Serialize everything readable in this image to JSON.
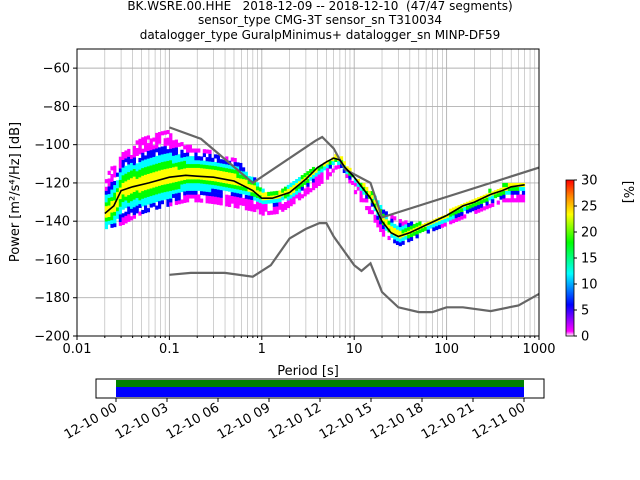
{
  "title": {
    "line1": "BK.WSRE.00.HHE   2018-12-09 -- 2018-12-10  (47/47 segments)",
    "line2": "sensor_type CMG-3T sensor_sn T310034",
    "line3": "datalogger_type GuralpMinimus+ datalogger_sn MINP-DF59"
  },
  "chart_data": [
    {
      "type": "heatmap",
      "xlabel": "Period [s]",
      "ylabel": "Power [m²/s⁴/Hz] [dB]",
      "x_scale": "log",
      "xlim": [
        0.01,
        1000
      ],
      "ylim": [
        -200,
        -50
      ],
      "x_ticks": [
        0.01,
        0.1,
        1,
        10,
        100,
        1000
      ],
      "x_tick_labels": [
        "0.01",
        "0.1",
        "1",
        "10",
        "100",
        "1000"
      ],
      "y_ticks": [
        -200,
        -180,
        -160,
        -140,
        -120,
        -100,
        -80,
        -60
      ],
      "y_tick_labels": [
        "−200",
        "−180",
        "−160",
        "−140",
        "−120",
        "−100",
        "−80",
        "−60"
      ],
      "grid": true,
      "colorbar": {
        "label": "[%]",
        "range": [
          0,
          30
        ],
        "ticks": [
          0,
          5,
          10,
          15,
          20,
          25,
          30
        ],
        "colors": [
          "#ffffff",
          "#ff00ff",
          "#0000ff",
          "#00ffff",
          "#00ff00",
          "#ffff00",
          "#ff8000",
          "#ff0000"
        ]
      },
      "series": [
        {
          "role": "noise_model_high",
          "color": "#666666",
          "x": [
            0.1,
            0.22,
            0.8,
            3.8,
            4.5,
            6,
            8,
            15,
            20,
            1000
          ],
          "y": [
            -91,
            -97,
            -120,
            -98,
            -96,
            -102,
            -113,
            -120,
            -138,
            -112
          ]
        },
        {
          "role": "noise_model_low",
          "color": "#666666",
          "x": [
            0.1,
            0.17,
            0.4,
            0.8,
            1.25,
            2,
            3,
            4.2,
            5,
            6,
            10,
            12,
            15,
            20,
            30,
            50,
            70,
            100,
            150,
            300,
            600,
            1000
          ],
          "y": [
            -168,
            -167,
            -167,
            -169,
            -163,
            -149,
            -144,
            -141,
            -141,
            -148,
            -163,
            -166,
            -162,
            -177,
            -185,
            -187.5,
            -187.5,
            -185,
            -185,
            -187,
            -184,
            -178
          ]
        },
        {
          "role": "mode",
          "color": "#000000",
          "x": [
            0.02,
            0.025,
            0.03,
            0.04,
            0.06,
            0.1,
            0.15,
            0.2,
            0.3,
            0.5,
            0.8,
            1,
            1.3,
            2,
            3,
            4,
            5,
            6,
            7,
            8,
            10,
            15,
            20,
            25,
            30,
            40,
            60,
            100,
            150,
            200,
            300,
            400,
            500,
            700
          ],
          "y": [
            -136,
            -132,
            -124,
            -122,
            -120,
            -117,
            -116,
            -116.5,
            -117,
            -119,
            -124,
            -128,
            -128,
            -125,
            -118,
            -112,
            -109,
            -107,
            -108,
            -112,
            -117,
            -128,
            -140,
            -146,
            -148,
            -146,
            -142,
            -137,
            -132,
            -130,
            -126,
            -124,
            -122,
            -121
          ]
        }
      ],
      "density_band": {
        "x": [
          0.02,
          0.03,
          0.05,
          0.08,
          0.1,
          0.15,
          0.2,
          0.3,
          0.5,
          0.8,
          1,
          1.5,
          2,
          3,
          5,
          6,
          7,
          8,
          10,
          15,
          20,
          30,
          50,
          100,
          200,
          400,
          700
        ],
        "upper": [
          -116,
          -106,
          -97,
          -93,
          -95,
          -101,
          -103,
          -105,
          -109,
          -118,
          -125,
          -124,
          -121,
          -115,
          -110,
          -106,
          -108,
          -112,
          -118,
          -126,
          -135,
          -140,
          -142,
          -136,
          -128,
          -122,
          -120
        ],
        "lower": [
          -144,
          -142,
          -136,
          -133,
          -132,
          -130,
          -130,
          -131,
          -133,
          -135,
          -137,
          -136,
          -132,
          -126,
          -118,
          -113,
          -112,
          -117,
          -126,
          -138,
          -148,
          -153,
          -148,
          -142,
          -136,
          -130,
          -130
        ]
      }
    },
    {
      "type": "timeline",
      "x_tick_labels": [
        "12-10 00",
        "12-10 03",
        "12-10 06",
        "12-10 09",
        "12-10 12",
        "12-10 15",
        "12-10 18",
        "12-10 21",
        "12-11 00"
      ],
      "coverage_fraction_start": 0.0,
      "coverage_fraction_end": 1.0,
      "coverage_colors": [
        "#008000",
        "#0000ff"
      ]
    }
  ]
}
